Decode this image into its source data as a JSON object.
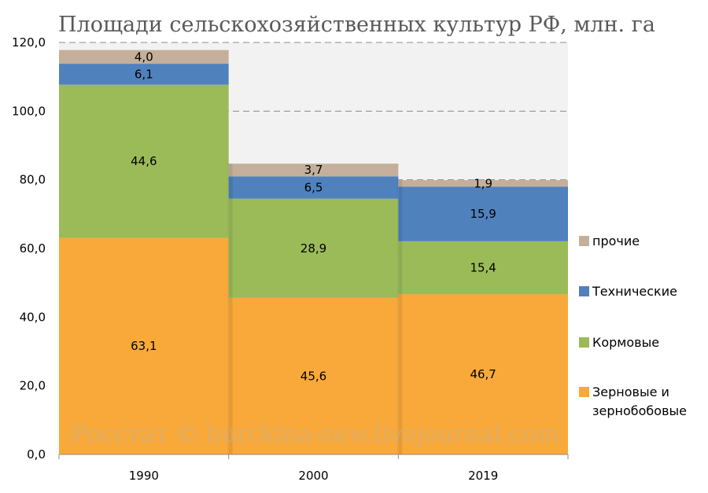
{
  "chart_data": {
    "type": "bar",
    "stacked": true,
    "title": "Площади сельскохозяйственных культур РФ, млн. га",
    "categories": [
      "1990",
      "2000",
      "2019"
    ],
    "series": [
      {
        "name": "Зерновые и зернобобовые",
        "values": [
          63.1,
          45.6,
          46.7
        ],
        "labels": [
          "63,1",
          "45,6",
          "46,7"
        ],
        "color": "#f8a93a"
      },
      {
        "name": "Кормовые",
        "values": [
          44.6,
          28.9,
          15.4
        ],
        "labels": [
          "44,6",
          "28,9",
          "15,4"
        ],
        "color": "#9bbb59"
      },
      {
        "name": "Технические",
        "values": [
          6.1,
          6.5,
          15.9
        ],
        "labels": [
          "6,1",
          "6,5",
          "15,9"
        ],
        "color": "#4f81bd"
      },
      {
        "name": "прочие",
        "values": [
          4.0,
          3.7,
          1.9
        ],
        "labels": [
          "4,0",
          "3,7",
          "1,9"
        ],
        "color": "#c4b09a"
      }
    ],
    "yticks": [
      {
        "value": 0,
        "label": "0,0"
      },
      {
        "value": 20,
        "label": "20,0"
      },
      {
        "value": 40,
        "label": "40,0"
      },
      {
        "value": 60,
        "label": "60,0"
      },
      {
        "value": 80,
        "label": "80,0"
      },
      {
        "value": 100,
        "label": "100,0"
      },
      {
        "value": 120,
        "label": "120,0"
      }
    ],
    "ylim": [
      0,
      120
    ],
    "grid": true,
    "legend_position": "right",
    "legend_order": [
      "прочие",
      "Технические",
      "Кормовые",
      "Зерновые и зернобобовые"
    ],
    "plot_background": "#f2f2f2",
    "watermark": "Росстат © burckina-new.livejournal.com"
  }
}
